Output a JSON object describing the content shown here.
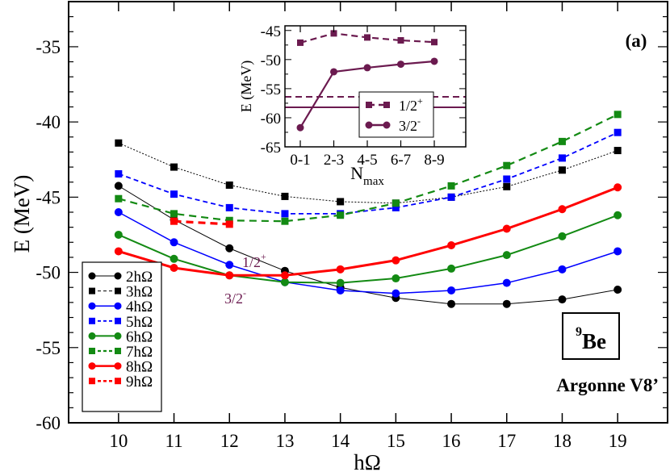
{
  "chart_data": [
    {
      "type": "line",
      "title": "",
      "panel_label": "(a)",
      "xlabel": "hΩ",
      "ylabel": "E (MeV)",
      "xlim": [
        9.1,
        19.9
      ],
      "ylim": [
        -60,
        -32
      ],
      "xticks": [
        10,
        11,
        12,
        13,
        14,
        15,
        16,
        17,
        18,
        19
      ],
      "yticks": [
        -60,
        -55,
        -50,
        -45,
        -40,
        -35
      ],
      "grid": false,
      "legend_placement": "bottom-left",
      "annotations": {
        "nucleus_mass": "9",
        "nucleus_symbol": "Be",
        "interaction": "Argonne V8’",
        "state_half_plus": {
          "base": "1/2",
          "sup": "+"
        },
        "state_three_half_minus": {
          "base": "3/2",
          "sup": "-"
        }
      },
      "annotation_color": "#6b1a4f",
      "x": [
        10,
        11,
        12,
        13,
        14,
        15,
        16,
        17,
        18,
        19
      ],
      "series": [
        {
          "name": "2hΩ",
          "color": "#000000",
          "marker": "circle",
          "line": "solid-thin",
          "values": [
            -44.25,
            -46.5,
            -48.4,
            -49.9,
            -51.0,
            -51.7,
            -52.1,
            -52.1,
            -51.8,
            -51.15
          ]
        },
        {
          "name": "3hΩ",
          "color": "#000000",
          "marker": "square",
          "line": "dotted",
          "values": [
            -41.4,
            -43.0,
            -44.2,
            -44.95,
            -45.3,
            -45.4,
            -45.0,
            -44.3,
            -43.2,
            -41.9
          ]
        },
        {
          "name": "4hΩ",
          "color": "#0000ff",
          "marker": "circle",
          "line": "solid",
          "values": [
            -46.0,
            -48.0,
            -49.5,
            -50.65,
            -51.2,
            -51.4,
            -51.2,
            -50.7,
            -49.8,
            -48.6
          ]
        },
        {
          "name": "5hΩ",
          "color": "#0000ff",
          "marker": "square",
          "line": "dashed",
          "values": [
            -43.45,
            -44.8,
            -45.7,
            -46.1,
            -46.1,
            -45.7,
            -45.0,
            -43.8,
            -42.4,
            -40.7
          ]
        },
        {
          "name": "6hΩ",
          "color": "#138a13",
          "marker": "circle",
          "line": "solid",
          "values": [
            -47.5,
            -49.1,
            -50.2,
            -50.65,
            -50.7,
            -50.4,
            -49.75,
            -48.85,
            -47.6,
            -46.2
          ]
        },
        {
          "name": "7hΩ",
          "color": "#138a13",
          "marker": "square",
          "line": "dashed",
          "values": [
            -45.1,
            -46.1,
            -46.55,
            -46.6,
            -46.2,
            -45.4,
            -44.25,
            -42.9,
            -41.3,
            -39.5
          ]
        },
        {
          "name": "8hΩ",
          "color": "#ff0000",
          "marker": "circle",
          "line": "solid-thick",
          "values": [
            -48.6,
            -49.7,
            -50.2,
            -50.2,
            -49.8,
            -49.2,
            -48.2,
            -47.1,
            -45.8,
            -44.35
          ]
        },
        {
          "name": "9hΩ",
          "color": "#ff0000",
          "marker": "square",
          "line": "dashed-thick",
          "values": [
            null,
            -46.6,
            -46.8,
            null,
            null,
            null,
            null,
            null,
            null,
            null
          ]
        }
      ]
    },
    {
      "type": "line",
      "title": "",
      "xlabel": {
        "base": "N",
        "sub": "max"
      },
      "ylabel": "E (MeV)",
      "categories": [
        "0-1",
        "2-3",
        "4-5",
        "6-7",
        "8-9"
      ],
      "ylim": [
        -65,
        -44.2
      ],
      "yticks": [
        -65,
        -60,
        -55,
        -50,
        -45
      ],
      "grid": false,
      "legend_placement": "bottom-right",
      "color": "#6b1a4f",
      "series": [
        {
          "name": {
            "base": "1/2",
            "sup": "+"
          },
          "marker": "square",
          "line": "dashed",
          "values": [
            -47.1,
            -45.5,
            -46.2,
            -46.7,
            -47.0
          ],
          "reference_line": -56.4
        },
        {
          "name": {
            "base": "3/2",
            "sup": "-"
          },
          "marker": "circle",
          "line": "solid",
          "values": [
            -61.7,
            -52.1,
            -51.4,
            -50.8,
            -50.3
          ],
          "reference_line": -58.2
        }
      ]
    }
  ]
}
